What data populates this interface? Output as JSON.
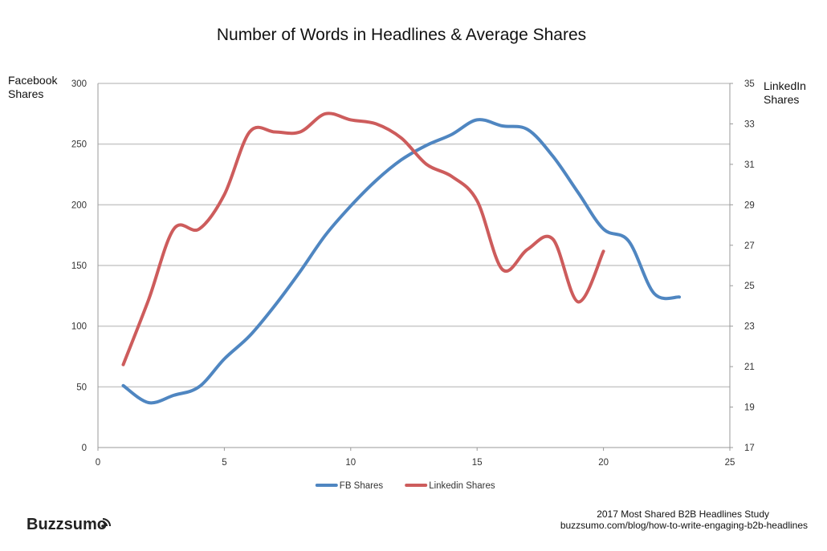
{
  "chart_data": {
    "type": "line",
    "title": "Number of Words in Headlines & Average Shares",
    "y_left_label_lines": [
      "Facebook",
      "Shares"
    ],
    "y_right_label_lines": [
      "LinkedIn",
      "Shares"
    ],
    "xlim": [
      0,
      25
    ],
    "x_ticks": [
      0,
      5,
      10,
      15,
      20,
      25
    ],
    "ylim_left": [
      0,
      300
    ],
    "y_left_ticks": [
      0,
      50,
      100,
      150,
      200,
      250,
      300
    ],
    "ylim_right": [
      17,
      35
    ],
    "y_right_ticks": [
      17,
      19,
      21,
      23,
      25,
      27,
      29,
      31,
      33,
      35
    ],
    "grid": true,
    "legend_position": "bottom-center",
    "series": [
      {
        "name": "FB Shares",
        "axis": "left",
        "color": "#4f86c1",
        "x": [
          1,
          2,
          3,
          4,
          5,
          6,
          7,
          8,
          9,
          10,
          11,
          12,
          13,
          14,
          15,
          16,
          17,
          18,
          19,
          20,
          21,
          22,
          23
        ],
        "y": [
          51,
          37,
          43,
          50,
          73,
          92,
          117,
          145,
          175,
          199,
          220,
          237,
          249,
          258,
          270,
          265,
          262,
          240,
          210,
          180,
          170,
          127,
          124
        ]
      },
      {
        "name": "Linkedin Shares",
        "axis": "right",
        "color": "#cd5c5c",
        "x": [
          1,
          2,
          3,
          4,
          5,
          6,
          7,
          8,
          9,
          10,
          11,
          12,
          13,
          14,
          15,
          16,
          17,
          18,
          19,
          20
        ],
        "y": [
          21.1,
          24.3,
          27.8,
          27.8,
          29.5,
          32.6,
          32.6,
          32.6,
          33.5,
          33.2,
          33.0,
          32.3,
          31.0,
          30.4,
          29.2,
          25.8,
          26.8,
          27.3,
          24.2,
          26.7
        ]
      }
    ]
  },
  "footer": {
    "brand": "Buzzsumo",
    "brand_icon": "signal-waves-icon",
    "credit_line1": "2017 Most Shared B2B Headlines Study",
    "credit_line2": "buzzsumo.com/blog/how-to-write-engaging-b2b-headlines"
  }
}
